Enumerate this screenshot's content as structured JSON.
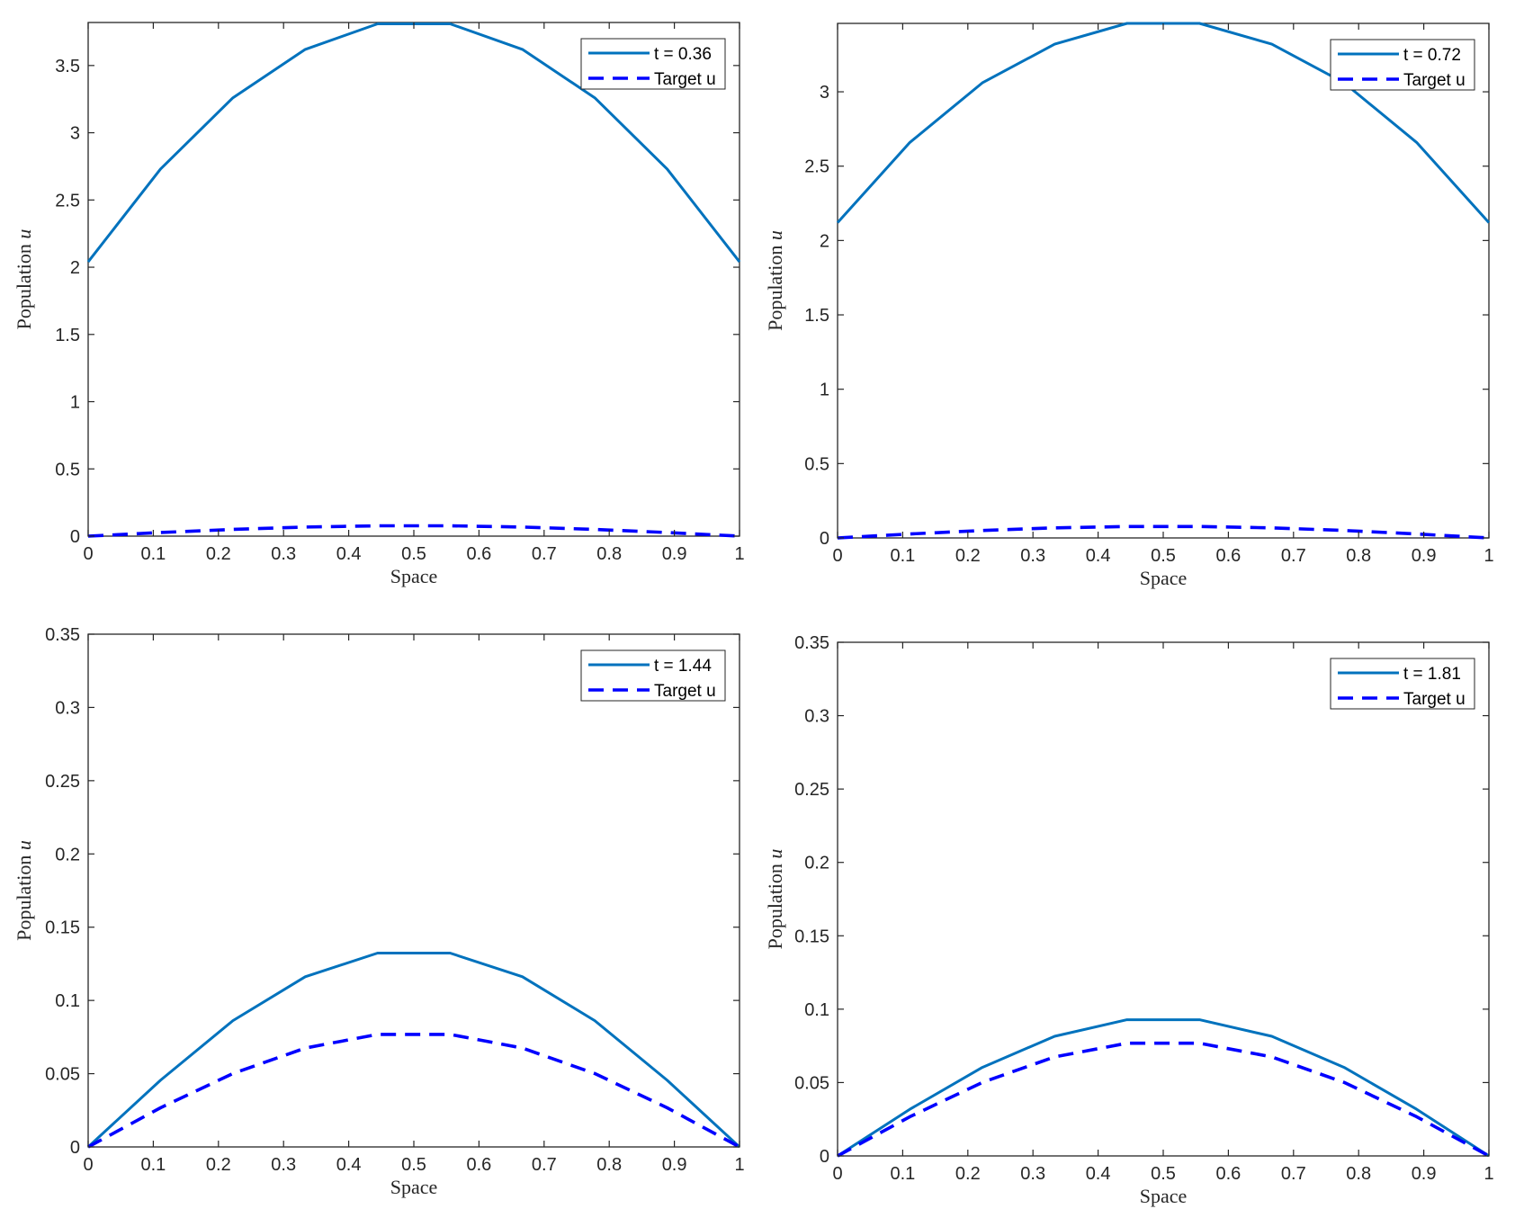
{
  "colors": {
    "model": "#0072BD",
    "target": "#0000FF",
    "axis": "#262626",
    "background": "#ffffff"
  },
  "chart_data": [
    {
      "type": "line",
      "xlabel": "Space",
      "ylabel": "Population u",
      "xlim": [
        0,
        1
      ],
      "ylim": [
        0,
        3.82
      ],
      "xticks": [
        "0",
        "0.1",
        "0.2",
        "0.3",
        "0.4",
        "0.5",
        "0.6",
        "0.7",
        "0.8",
        "0.9",
        "1"
      ],
      "yticks": [
        "0",
        "0.5",
        "1",
        "1.5",
        "2",
        "2.5",
        "3",
        "3.5"
      ],
      "legend_position": "top-right",
      "grid": false,
      "x": [
        0,
        0.1111,
        0.2222,
        0.3333,
        0.4444,
        0.5556,
        0.6667,
        0.7778,
        0.8889,
        1
      ],
      "series": [
        {
          "name": "t = 0.36",
          "style": "solid",
          "values": [
            2.04,
            2.73,
            3.26,
            3.62,
            3.81,
            3.81,
            3.62,
            3.26,
            2.73,
            2.04
          ]
        },
        {
          "name": "Target u",
          "style": "dashed",
          "values": [
            0,
            0.0267,
            0.0501,
            0.0675,
            0.0768,
            0.0768,
            0.0675,
            0.0501,
            0.0267,
            0
          ]
        }
      ]
    },
    {
      "type": "line",
      "xlabel": "Space",
      "ylabel": "Population u",
      "xlim": [
        0,
        1
      ],
      "ylim": [
        0,
        3.46
      ],
      "xticks": [
        "0",
        "0.1",
        "0.2",
        "0.3",
        "0.4",
        "0.5",
        "0.6",
        "0.7",
        "0.8",
        "0.9",
        "1"
      ],
      "yticks": [
        "0",
        "0.5",
        "1",
        "1.5",
        "2",
        "2.5",
        "3"
      ],
      "legend_position": "top-right",
      "grid": false,
      "x": [
        0,
        0.1111,
        0.2222,
        0.3333,
        0.4444,
        0.5556,
        0.6667,
        0.7778,
        0.8889,
        1
      ],
      "series": [
        {
          "name": "t = 0.72",
          "style": "solid",
          "values": [
            2.12,
            2.66,
            3.06,
            3.32,
            3.46,
            3.46,
            3.32,
            3.06,
            2.66,
            2.12
          ]
        },
        {
          "name": "Target u",
          "style": "dashed",
          "values": [
            0,
            0.0267,
            0.0501,
            0.0675,
            0.0768,
            0.0768,
            0.0675,
            0.0501,
            0.0267,
            0
          ]
        }
      ]
    },
    {
      "type": "line",
      "xlabel": "Space",
      "ylabel": "Population u",
      "xlim": [
        0,
        1
      ],
      "ylim": [
        0,
        0.35
      ],
      "xticks": [
        "0",
        "0.1",
        "0.2",
        "0.3",
        "0.4",
        "0.5",
        "0.6",
        "0.7",
        "0.8",
        "0.9",
        "1"
      ],
      "yticks": [
        "0",
        "0.05",
        "0.1",
        "0.15",
        "0.2",
        "0.25",
        "0.3",
        "0.35"
      ],
      "legend_position": "top-right",
      "grid": false,
      "x": [
        0,
        0.1111,
        0.2222,
        0.3333,
        0.4444,
        0.5556,
        0.6667,
        0.7778,
        0.8889,
        1
      ],
      "series": [
        {
          "name": "t = 1.44",
          "style": "solid",
          "values": [
            0,
            0.0455,
            0.0862,
            0.1162,
            0.1323,
            0.1323,
            0.1162,
            0.0862,
            0.0455,
            0
          ]
        },
        {
          "name": "Target u",
          "style": "dashed",
          "values": [
            0,
            0.0267,
            0.0501,
            0.0675,
            0.0768,
            0.0768,
            0.0675,
            0.0501,
            0.0267,
            0
          ]
        }
      ]
    },
    {
      "type": "line",
      "xlabel": "Space",
      "ylabel": "Population u",
      "xlim": [
        0,
        1
      ],
      "ylim": [
        0,
        0.35
      ],
      "xticks": [
        "0",
        "0.1",
        "0.2",
        "0.3",
        "0.4",
        "0.5",
        "0.6",
        "0.7",
        "0.8",
        "0.9",
        "1"
      ],
      "yticks": [
        "0",
        "0.05",
        "0.1",
        "0.15",
        "0.2",
        "0.25",
        "0.3",
        "0.35"
      ],
      "legend_position": "top-right",
      "grid": false,
      "x": [
        0,
        0.1111,
        0.2222,
        0.3333,
        0.4444,
        0.5556,
        0.6667,
        0.7778,
        0.8889,
        1
      ],
      "series": [
        {
          "name": "t = 1.81",
          "style": "solid",
          "values": [
            0,
            0.0318,
            0.0603,
            0.0815,
            0.0928,
            0.0928,
            0.0815,
            0.0603,
            0.0318,
            0
          ]
        },
        {
          "name": "Target u",
          "style": "dashed",
          "values": [
            0,
            0.0267,
            0.0501,
            0.0675,
            0.0768,
            0.0768,
            0.0675,
            0.0501,
            0.0267,
            0
          ]
        }
      ]
    }
  ]
}
